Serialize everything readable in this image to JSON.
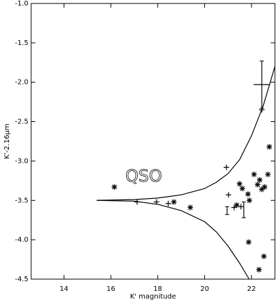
{
  "chart_data": {
    "type": "scatter",
    "x_label": "K' magnitude",
    "y_label": "K'-2.16μm",
    "annotation": {
      "text": "QSO",
      "x": 17.4,
      "y": -3.2
    },
    "xlim": [
      12.6,
      23.0
    ],
    "xticks": [
      14,
      16,
      18,
      20,
      22
    ],
    "ylim": [
      -4.5,
      -1.0
    ],
    "yticks": [
      {
        "value": -1.0,
        "label": "-1.0"
      },
      -1.5,
      {
        "value": -2.0,
        "label": "-2.0"
      },
      -2.5,
      {
        "value": -3.0,
        "label": "-3.0"
      },
      -3.5,
      {
        "value": -4.0,
        "label": "-4.0"
      },
      -4.5
    ],
    "color": "#000000",
    "series": [
      {
        "marker": "asterisk",
        "x": [
          16.15,
          21.49,
          21.61,
          21.37,
          21.85,
          21.91,
          22.11,
          22.35,
          22.26,
          22.44,
          22.7,
          22.56,
          22.76,
          21.88,
          22.53,
          22.32,
          19.39,
          18.69
        ],
        "values": [
          -3.33,
          -3.29,
          -3.35,
          -3.56,
          -3.42,
          -3.5,
          -3.17,
          -3.24,
          -3.3,
          -3.36,
          -3.17,
          -3.33,
          -2.82,
          -4.03,
          -4.21,
          -4.38,
          -3.59,
          -3.52
        ]
      },
      {
        "marker": "plus",
        "x": [
          17.95,
          18.45,
          17.12,
          20.93,
          21.02,
          21.26,
          21.55,
          22.44
        ],
        "values": [
          -3.52,
          -3.54,
          -3.52,
          -3.08,
          -3.43,
          -3.59,
          -3.58,
          -2.35
        ]
      }
    ],
    "errorbars": [
      {
        "x": 22.44,
        "y": -2.03,
        "xerr": 0.35,
        "yerr": 0.3
      },
      {
        "x": 20.96,
        "y": -3.63,
        "yerr": 0.05
      },
      {
        "x": 21.67,
        "y": -3.62,
        "yerr": 0.1
      }
    ],
    "lines": [
      {
        "x": [
          15.4,
          17,
          18,
          19,
          20,
          20.5,
          21,
          21.5,
          22,
          22.5,
          23
        ],
        "values": [
          -3.5,
          -3.49,
          -3.47,
          -3.43,
          -3.35,
          -3.27,
          -3.16,
          -2.98,
          -2.68,
          -2.3,
          -1.8
        ]
      },
      {
        "x": [
          15.4,
          17,
          18,
          19,
          20,
          20.5,
          21,
          21.5,
          21.9
        ],
        "values": [
          -3.5,
          -3.51,
          -3.55,
          -3.63,
          -3.77,
          -3.9,
          -4.08,
          -4.3,
          -4.5
        ]
      }
    ]
  }
}
